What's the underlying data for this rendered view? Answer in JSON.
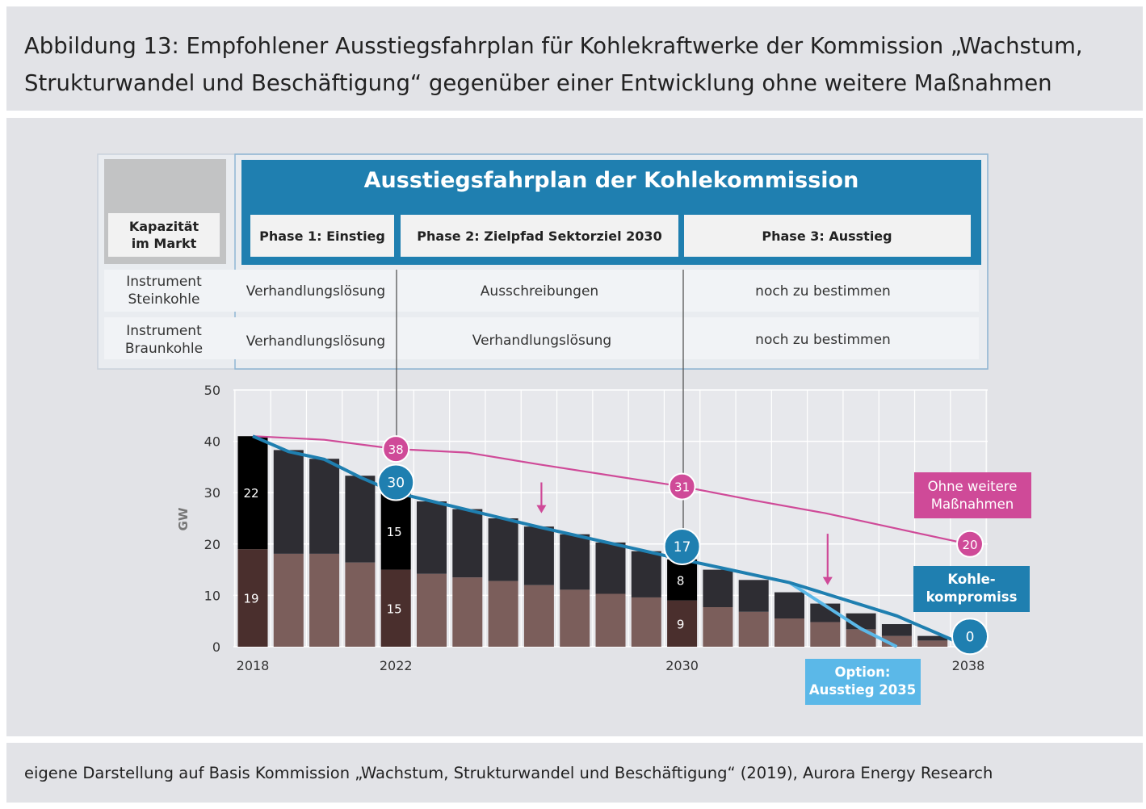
{
  "title": "Abbildung 13: Empfohlener Ausstiegsfahrplan für Kohlekraftwerke der Kommission „Wachstum, Strukturwandel und Beschäftigung“ gegenüber einer Entwicklung ohne weitere Maßnahmen",
  "footer": "eigene Darstellung auf Basis Kommission „Wachstum, Strukturwandel und Beschäftigung“ (2019), Aurora Energy Research",
  "colors": {
    "blue": "#1f7fb0",
    "light_blue": "#5bb8e8",
    "pink": "#cf4a98",
    "steinkohle": "#2e2d33",
    "braunkohle": "#7b5e5b",
    "highlight_stein": "#000000",
    "highlight_braun": "#4a2f2d"
  },
  "table": {
    "header": "Ausstiegsfahrplan der Kohlekommission",
    "corner_label": [
      "Kapazität",
      "im Markt"
    ],
    "phases": [
      "Phase 1: Einstieg",
      "Phase 2: Zielpfad Sektorziel 2030",
      "Phase 3: Ausstieg"
    ],
    "rows": [
      {
        "label": [
          "Instrument",
          "Steinkohle"
        ],
        "values": [
          "Verhandlungslösung",
          "Ausschreibungen",
          "noch zu bestimmen"
        ]
      },
      {
        "label": [
          "Instrument",
          "Braunkohle"
        ],
        "values": [
          "Verhandlungslösung",
          "Verhandlungslösung",
          "noch zu bestimmen"
        ]
      }
    ]
  },
  "chart_data": {
    "type": "bar",
    "ylabel": "GW",
    "ylim": [
      0,
      50
    ],
    "yticks": [
      "0",
      "10",
      "20",
      "30",
      "40",
      "50"
    ],
    "x": [
      2018,
      2019,
      2020,
      2021,
      2022,
      2023,
      2024,
      2025,
      2026,
      2027,
      2028,
      2029,
      2030,
      2031,
      2032,
      2033,
      2034,
      2035,
      2036,
      2037,
      2038
    ],
    "xtick_labels": [
      "2018",
      "2022",
      "2030",
      "2038"
    ],
    "grid": true,
    "series": [
      {
        "name": "Braunkohle",
        "values": [
          19,
          18.1,
          18.1,
          16.4,
          15,
          14.2,
          13.5,
          12.8,
          12,
          11.1,
          10.3,
          9.6,
          9,
          7.7,
          6.8,
          5.5,
          4.8,
          3.4,
          2.1,
          1.2,
          0
        ]
      },
      {
        "name": "Steinkohle",
        "values": [
          22,
          20.2,
          18.5,
          16.9,
          15,
          14.1,
          13.3,
          12.2,
          11.4,
          10.8,
          10,
          9,
          8,
          7.3,
          6.2,
          5.1,
          3.6,
          3.1,
          2.3,
          0.9,
          0
        ]
      },
      {
        "name": "Kohlekompromiss",
        "type": "line",
        "points": [
          [
            2018,
            41
          ],
          [
            2019,
            38
          ],
          [
            2020,
            36.5
          ],
          [
            2021,
            33
          ],
          [
            2022,
            30
          ],
          [
            2026,
            23.3
          ],
          [
            2030,
            17
          ],
          [
            2033,
            12.5
          ],
          [
            2036,
            6
          ],
          [
            2038,
            0
          ]
        ]
      },
      {
        "name": "Option: Ausstieg 2035",
        "type": "line",
        "points": [
          [
            2033,
            12.5
          ],
          [
            2034,
            8
          ],
          [
            2035,
            3.5
          ],
          [
            2036,
            0
          ]
        ]
      },
      {
        "name": "Ohne weitere Maßnahmen",
        "type": "line",
        "points": [
          [
            2018,
            41
          ],
          [
            2020,
            40.3
          ],
          [
            2022,
            38.5
          ],
          [
            2024,
            37.8
          ],
          [
            2026,
            35.5
          ],
          [
            2030,
            31.2
          ],
          [
            2032,
            28.5
          ],
          [
            2034,
            26
          ],
          [
            2036,
            23
          ],
          [
            2038,
            20
          ]
        ]
      }
    ],
    "data_labels": {
      "braun_2018": "19",
      "stein_2018": "22",
      "braun_2022": "15",
      "stein_2022": "15",
      "braun_2030": "9",
      "stein_2030": "8"
    },
    "markers": [
      {
        "series": "Ohne weitere Maßnahmen",
        "x": 2022,
        "y": 38.5,
        "label": "38"
      },
      {
        "series": "Ohne weitere Maßnahmen",
        "x": 2030,
        "y": 31.2,
        "label": "31"
      },
      {
        "series": "Ohne weitere Maßnahmen",
        "x": 2038,
        "y": 20,
        "label": "20"
      },
      {
        "series": "Kohlekompromiss",
        "x": 2022,
        "y": 32,
        "label": "30"
      },
      {
        "series": "Kohlekompromiss",
        "x": 2030,
        "y": 19.5,
        "label": "17"
      },
      {
        "series": "Kohlekompromiss",
        "x": 2038,
        "y": 2,
        "label": "0"
      }
    ],
    "callouts": {
      "ohne": [
        "Ohne weitere",
        "Maßnahmen"
      ],
      "kohle": [
        "Kohle-",
        "kompromiss"
      ],
      "option": [
        "Option:",
        "Ausstieg 2035"
      ]
    },
    "arrows": [
      {
        "x": 2026,
        "y_from": 32,
        "y_to": 26
      },
      {
        "x": 2034,
        "y_from": 22,
        "y_to": 12
      }
    ]
  }
}
